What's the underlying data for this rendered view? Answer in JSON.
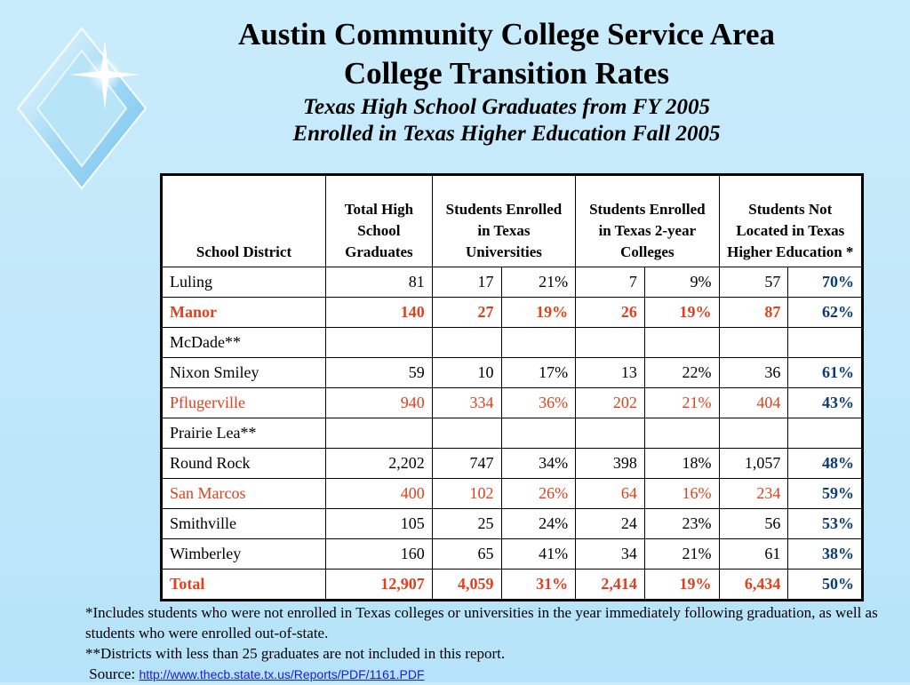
{
  "title_line1": "Austin Community College Service Area",
  "title_line2": "College Transition Rates",
  "subtitle_line1": "Texas High School Graduates from FY 2005",
  "subtitle_line2": "Enrolled in Texas Higher Education Fall 2005",
  "table": {
    "headers": {
      "district": "School District",
      "total": "Total High School Graduates",
      "univ": "Students Enrolled in Texas Universities",
      "college": "Students Enrolled in Texas 2-year Colleges",
      "notlocated": "Students Not Located in Texas Higher Education *"
    },
    "rows": [
      {
        "district": "Luling",
        "total": "81",
        "univ_n": "17",
        "univ_p": "21%",
        "col_n": "7",
        "col_p": "9%",
        "nl_n": "57",
        "nl_p": "70%",
        "style": "normal"
      },
      {
        "district": "Manor",
        "total": "140",
        "univ_n": "27",
        "univ_p": "19%",
        "col_n": "26",
        "col_p": "19%",
        "nl_n": "87",
        "nl_p": "62%",
        "style": "red-bold"
      },
      {
        "district": "McDade**",
        "total": "",
        "univ_n": "",
        "univ_p": "",
        "col_n": "",
        "col_p": "",
        "nl_n": "",
        "nl_p": "",
        "style": "normal"
      },
      {
        "district": "Nixon Smiley",
        "total": "59",
        "univ_n": "10",
        "univ_p": "17%",
        "col_n": "13",
        "col_p": "22%",
        "nl_n": "36",
        "nl_p": "61%",
        "style": "normal"
      },
      {
        "district": "Pflugerville",
        "total": "940",
        "univ_n": "334",
        "univ_p": "36%",
        "col_n": "202",
        "col_p": "21%",
        "nl_n": "404",
        "nl_p": "43%",
        "style": "red"
      },
      {
        "district": "Prairie Lea**",
        "total": "",
        "univ_n": "",
        "univ_p": "",
        "col_n": "",
        "col_p": "",
        "nl_n": "",
        "nl_p": "",
        "style": "normal"
      },
      {
        "district": "Round Rock",
        "total": "2,202",
        "univ_n": "747",
        "univ_p": "34%",
        "col_n": "398",
        "col_p": "18%",
        "nl_n": "1,057",
        "nl_p": "48%",
        "style": "normal"
      },
      {
        "district": "San Marcos",
        "total": "400",
        "univ_n": "102",
        "univ_p": "26%",
        "col_n": "64",
        "col_p": "16%",
        "nl_n": "234",
        "nl_p": "59%",
        "style": "red"
      },
      {
        "district": "Smithville",
        "total": "105",
        "univ_n": "25",
        "univ_p": "24%",
        "col_n": "24",
        "col_p": "23%",
        "nl_n": "56",
        "nl_p": "53%",
        "style": "normal"
      },
      {
        "district": "Wimberley",
        "total": "160",
        "univ_n": "65",
        "univ_p": "41%",
        "col_n": "34",
        "col_p": "21%",
        "nl_n": "61",
        "nl_p": "38%",
        "style": "normal"
      },
      {
        "district": "Total",
        "total": "12,907",
        "univ_n": "4,059",
        "univ_p": "31%",
        "col_n": "2,414",
        "col_p": "19%",
        "nl_n": "6,434",
        "nl_p": "50%",
        "style": "red-bold"
      }
    ]
  },
  "footnote1": "*Includes students who were not enrolled in Texas colleges or universities in the year immediately following graduation, as well as students who were enrolled out-of-state.",
  "footnote2": "**Districts with less than 25 graduates are not included in this report.",
  "source_label": "Source:",
  "source_url": "http://www.thecb.state.tx.us/Reports/PDF/1161.PDF",
  "colors": {
    "red": "#e0401c",
    "blue": "#0a3a7a",
    "link": "#1a1ae6"
  }
}
